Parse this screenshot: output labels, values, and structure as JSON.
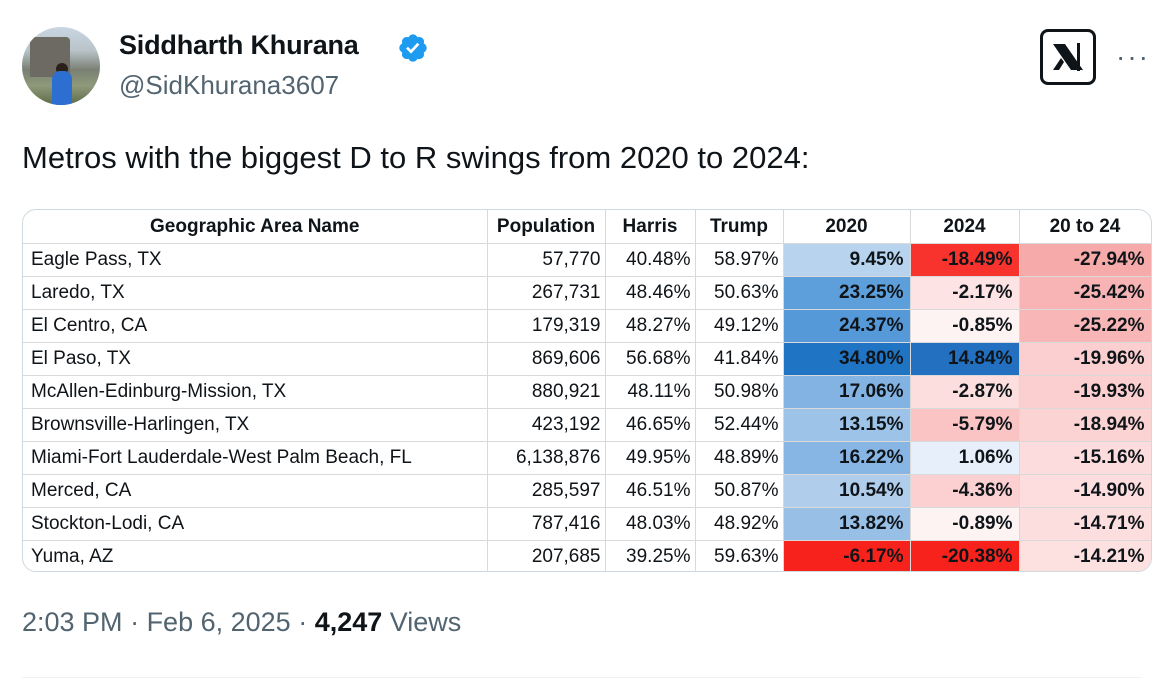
{
  "author": {
    "name": "Siddharth Khurana",
    "handle": "@SidKhurana3607",
    "verified": true
  },
  "tweet_text": "Metros with the biggest D to R swings from 2020 to 2024:",
  "table": {
    "headers": [
      "Geographic Area Name",
      "Population",
      "Harris",
      "Trump",
      "2020",
      "2024",
      "20 to 24"
    ],
    "rows": [
      {
        "area": "Eagle Pass, TX",
        "population": "57,770",
        "harris": "40.48%",
        "trump": "58.97%",
        "y2020": "9.45%",
        "y2024": "-18.49%",
        "change": "-27.94%",
        "c2020": "#b8d3ee",
        "c2024": "#f8332d",
        "cchg": "#f7aaaa"
      },
      {
        "area": "Laredo, TX",
        "population": "267,731",
        "harris": "48.46%",
        "trump": "50.63%",
        "y2020": "23.25%",
        "y2024": "-2.17%",
        "change": "-25.42%",
        "c2020": "#5d9fdb",
        "c2024": "#fde3e3",
        "cchg": "#f8b4b4"
      },
      {
        "area": "El Centro, CA",
        "population": "179,319",
        "harris": "48.27%",
        "trump": "49.12%",
        "y2020": "24.37%",
        "y2024": "-0.85%",
        "change": "-25.22%",
        "c2020": "#5699d9",
        "c2024": "#fef3f3",
        "cchg": "#f8b6b6"
      },
      {
        "area": "El Paso, TX",
        "population": "869,606",
        "harris": "56.68%",
        "trump": "41.84%",
        "y2020": "34.80%",
        "y2024": "14.84%",
        "change": "-19.96%",
        "c2020": "#1f74c4",
        "c2024": "#2370c0",
        "cchg": "#fbcfcf"
      },
      {
        "area": "McAllen-Edinburg-Mission, TX",
        "population": "880,921",
        "harris": "48.11%",
        "trump": "50.98%",
        "y2020": "17.06%",
        "y2024": "-2.87%",
        "change": "-19.93%",
        "c2020": "#82b3e3",
        "c2024": "#fddede",
        "cchg": "#fbcfcf"
      },
      {
        "area": "Brownsville-Harlingen, TX",
        "population": "423,192",
        "harris": "46.65%",
        "trump": "52.44%",
        "y2020": "13.15%",
        "y2024": "-5.79%",
        "change": "-18.94%",
        "c2020": "#9dc3e8",
        "c2024": "#fbc4c4",
        "cchg": "#fbd3d3"
      },
      {
        "area": "Miami-Fort Lauderdale-West Palm Beach, FL",
        "population": "6,138,876",
        "harris": "49.95%",
        "trump": "48.89%",
        "y2020": "16.22%",
        "y2024": "1.06%",
        "change": "-15.16%",
        "c2020": "#88b6e4",
        "c2024": "#e7f0fa",
        "cchg": "#fcdcdc"
      },
      {
        "area": "Merced, CA",
        "population": "285,597",
        "harris": "46.51%",
        "trump": "50.87%",
        "y2020": "10.54%",
        "y2024": "-4.36%",
        "change": "-14.90%",
        "c2020": "#b0cdec",
        "c2024": "#fcd0d0",
        "cchg": "#fddddd"
      },
      {
        "area": "Stockton-Lodi, CA",
        "population": "787,416",
        "harris": "48.03%",
        "trump": "48.92%",
        "y2020": "13.82%",
        "y2024": "-0.89%",
        "change": "-14.71%",
        "c2020": "#98c0e7",
        "c2024": "#fef3f3",
        "cchg": "#fddede"
      },
      {
        "area": "Yuma, AZ",
        "population": "207,685",
        "harris": "39.25%",
        "trump": "59.63%",
        "y2020": "-6.17%",
        "y2024": "-20.38%",
        "change": "-14.21%",
        "c2020": "#f8221c",
        "c2024": "#f8221c",
        "cchg": "#fde1e1"
      }
    ]
  },
  "footer": {
    "time": "2:03 PM",
    "sep1": " · ",
    "date": "Feb 6, 2025",
    "sep2": " · ",
    "views_count": "4,247",
    "views_label": " Views"
  },
  "colors": {
    "text": "#0f1419",
    "secondary": "#536471",
    "verified": "#1d9bf0"
  },
  "icons": {
    "verified": "verified-badge-icon",
    "grok": "grok-icon",
    "more": "more-icon"
  }
}
